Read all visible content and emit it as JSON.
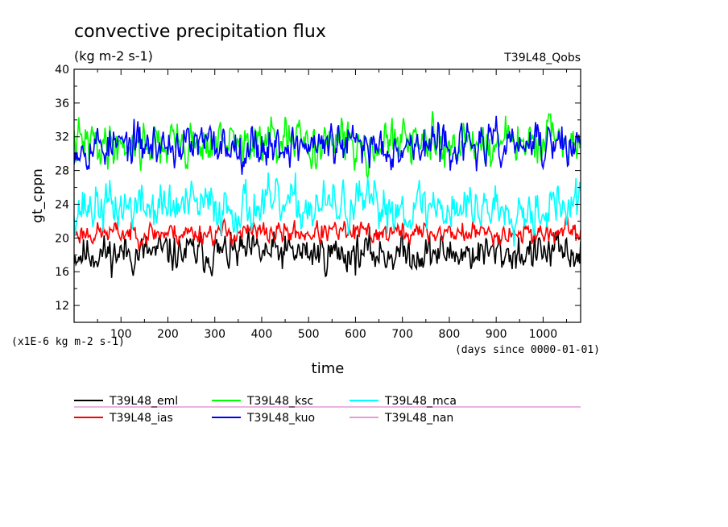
{
  "chart_data": {
    "type": "line",
    "title": "convective precipitation flux",
    "subtitle": "(kg m-2 s-1)",
    "case_label": "T39L48_Qobs",
    "ylabel": "gt_cppn",
    "xlabel": "time",
    "x_unit_note": "(days since 0000-01-01)",
    "y_scale_note": "(x1E-6 kg m-2 s-1)",
    "xlim": [
      0,
      1080
    ],
    "ylim": [
      10,
      40
    ],
    "x_ticks": [
      100,
      200,
      300,
      400,
      500,
      600,
      700,
      800,
      900,
      1000
    ],
    "x_tick_labels": [
      "100",
      "200",
      "300",
      "400",
      "500",
      "600",
      "700",
      "800",
      "900",
      "1000"
    ],
    "y_ticks": [
      12,
      16,
      20,
      24,
      28,
      32,
      36,
      40
    ],
    "y_tick_labels": [
      "12",
      "16",
      "20",
      "24",
      "28",
      "32",
      "36",
      "40"
    ],
    "grid": false,
    "legend_position": "bottom",
    "series": [
      {
        "name": "T39L48_eml",
        "color": "#000000",
        "mean": 18.2,
        "spread": 1.0,
        "seed": 11
      },
      {
        "name": "T39L48_ias",
        "color": "#ff0000",
        "mean": 20.6,
        "spread": 0.6,
        "seed": 23
      },
      {
        "name": "T39L48_mca",
        "color": "#00ffff",
        "mean": 23.7,
        "spread": 1.3,
        "seed": 37
      },
      {
        "name": "T39L48_ksc",
        "color": "#00ff00",
        "mean": 31.2,
        "spread": 1.2,
        "seed": 41
      },
      {
        "name": "T39L48_kuo",
        "color": "#0000ff",
        "mean": 31.0,
        "spread": 1.1,
        "seed": 53
      },
      {
        "name": "T39L48_nan",
        "color": "#e69ad6",
        "mean": null,
        "spread": 0,
        "seed": 0
      }
    ]
  }
}
